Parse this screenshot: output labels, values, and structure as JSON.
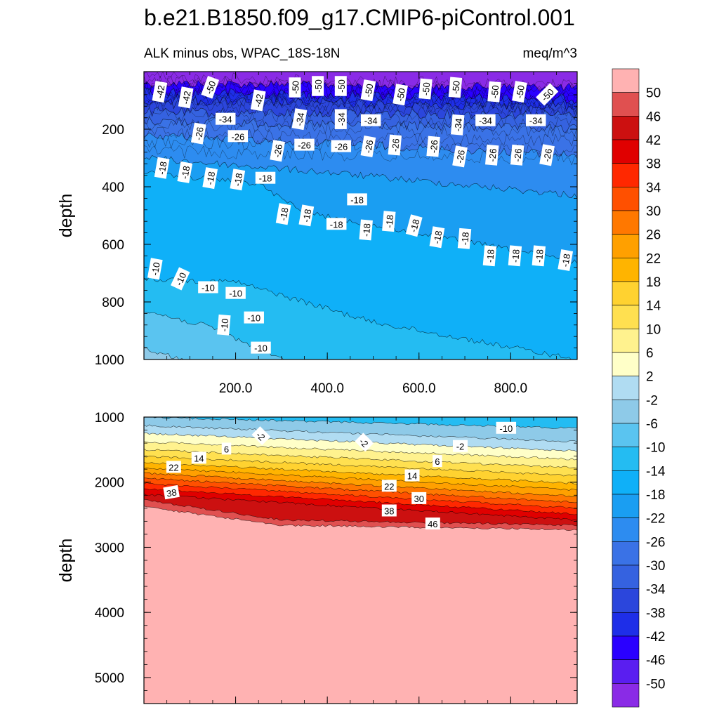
{
  "title": "b.e21.B1850.f09_g17.CMIP6-piControl.001",
  "subtitle_left": "ALK minus obs, WPAC_18S-18N",
  "subtitle_right": "meq/m^3",
  "colors": {
    "levels": [
      -50,
      -46,
      -42,
      -38,
      -34,
      -30,
      -26,
      -22,
      -18,
      -14,
      -10,
      -6,
      -2,
      2,
      6,
      10,
      14,
      18,
      22,
      26,
      30,
      34,
      38,
      42,
      46,
      50
    ],
    "swatches": [
      "#8a2be6",
      "#5a1ef0",
      "#2a00ff",
      "#1e2ee8",
      "#2b46dc",
      "#3562e0",
      "#3a72e6",
      "#2d8cf0",
      "#1a9ef2",
      "#0fb0f8",
      "#24bcf2",
      "#5ac4f0",
      "#8ecae8",
      "#b0dcf2",
      "#ffffc8",
      "#fff28e",
      "#ffe050",
      "#ffd230",
      "#ffb400",
      "#ffa000",
      "#ff7800",
      "#ff5000",
      "#ff2800",
      "#e00000",
      "#cc1010",
      "#e05050",
      "#ffb2b2"
    ]
  },
  "chart_data": [
    {
      "type": "contour",
      "panel": "upper",
      "xlabel": "",
      "ylabel": "depth",
      "xlim": [
        0,
        945
      ],
      "ylim": [
        1000,
        0
      ],
      "xticks": [
        "200.0",
        "400.0",
        "600.0",
        "800.0"
      ],
      "yticks": [
        "200",
        "400",
        "600",
        "800",
        "1000"
      ],
      "contour_labels": [
        {
          "v": "-42",
          "x": 35,
          "y": 70,
          "r": -80
        },
        {
          "v": "-42",
          "x": 92,
          "y": 90,
          "r": -80
        },
        {
          "v": "-50",
          "x": 145,
          "y": 55,
          "r": -70
        },
        {
          "v": "-42",
          "x": 250,
          "y": 100,
          "r": -80
        },
        {
          "v": "-50",
          "x": 330,
          "y": 55,
          "r": -90
        },
        {
          "v": "-50",
          "x": 380,
          "y": 50,
          "r": -90
        },
        {
          "v": "-50",
          "x": 430,
          "y": 50,
          "r": -90
        },
        {
          "v": "-50",
          "x": 490,
          "y": 65,
          "r": -80
        },
        {
          "v": "-50",
          "x": 560,
          "y": 80,
          "r": -80
        },
        {
          "v": "-50",
          "x": 615,
          "y": 60,
          "r": -85
        },
        {
          "v": "-50",
          "x": 680,
          "y": 55,
          "r": -85
        },
        {
          "v": "-50",
          "x": 765,
          "y": 70,
          "r": -85
        },
        {
          "v": "-50",
          "x": 820,
          "y": 70,
          "r": -80
        },
        {
          "v": "-50",
          "x": 880,
          "y": 80,
          "r": -45
        },
        {
          "v": "-34",
          "x": 178,
          "y": 165,
          "r": 0
        },
        {
          "v": "-34",
          "x": 340,
          "y": 165,
          "r": -80
        },
        {
          "v": "-34",
          "x": 430,
          "y": 165,
          "r": -90
        },
        {
          "v": "-34",
          "x": 495,
          "y": 170,
          "r": 0
        },
        {
          "v": "-34",
          "x": 685,
          "y": 185,
          "r": -85
        },
        {
          "v": "-34",
          "x": 745,
          "y": 170,
          "r": 0
        },
        {
          "v": "-34",
          "x": 855,
          "y": 170,
          "r": 0
        },
        {
          "v": "-26",
          "x": 120,
          "y": 215,
          "r": -80
        },
        {
          "v": "-26",
          "x": 205,
          "y": 225,
          "r": 0
        },
        {
          "v": "-26",
          "x": 292,
          "y": 275,
          "r": -80
        },
        {
          "v": "-26",
          "x": 350,
          "y": 255,
          "r": 0
        },
        {
          "v": "-26",
          "x": 430,
          "y": 260,
          "r": 0
        },
        {
          "v": "-26",
          "x": 490,
          "y": 260,
          "r": -80
        },
        {
          "v": "-26",
          "x": 548,
          "y": 255,
          "r": -85
        },
        {
          "v": "-26",
          "x": 632,
          "y": 260,
          "r": -85
        },
        {
          "v": "-26",
          "x": 690,
          "y": 295,
          "r": -80
        },
        {
          "v": "-26",
          "x": 760,
          "y": 290,
          "r": -85
        },
        {
          "v": "-26",
          "x": 815,
          "y": 290,
          "r": -85
        },
        {
          "v": "-26",
          "x": 880,
          "y": 290,
          "r": -80
        },
        {
          "v": "-18",
          "x": 40,
          "y": 335,
          "r": -80
        },
        {
          "v": "-18",
          "x": 90,
          "y": 350,
          "r": -80
        },
        {
          "v": "-18",
          "x": 145,
          "y": 370,
          "r": -80
        },
        {
          "v": "-18",
          "x": 205,
          "y": 375,
          "r": -80
        },
        {
          "v": "-18",
          "x": 265,
          "y": 370,
          "r": 0
        },
        {
          "v": "-18",
          "x": 305,
          "y": 495,
          "r": -80
        },
        {
          "v": "-18",
          "x": 355,
          "y": 500,
          "r": -80
        },
        {
          "v": "-18",
          "x": 420,
          "y": 530,
          "r": 0
        },
        {
          "v": "-18",
          "x": 465,
          "y": 445,
          "r": 0
        },
        {
          "v": "-18",
          "x": 485,
          "y": 550,
          "r": -85
        },
        {
          "v": "-18",
          "x": 535,
          "y": 520,
          "r": -85
        },
        {
          "v": "-18",
          "x": 590,
          "y": 535,
          "r": -75
        },
        {
          "v": "-18",
          "x": 640,
          "y": 575,
          "r": -80
        },
        {
          "v": "-18",
          "x": 700,
          "y": 580,
          "r": -85
        },
        {
          "v": "-18",
          "x": 755,
          "y": 640,
          "r": -85
        },
        {
          "v": "-18",
          "x": 810,
          "y": 640,
          "r": -85
        },
        {
          "v": "-18",
          "x": 862,
          "y": 640,
          "r": -85
        },
        {
          "v": "-18",
          "x": 920,
          "y": 655,
          "r": -80
        },
        {
          "v": "-10",
          "x": 25,
          "y": 685,
          "r": -80
        },
        {
          "v": "-10",
          "x": 80,
          "y": 720,
          "r": -65
        },
        {
          "v": "-10",
          "x": 140,
          "y": 750,
          "r": 0
        },
        {
          "v": "-10",
          "x": 200,
          "y": 770,
          "r": 0
        },
        {
          "v": "-10",
          "x": 175,
          "y": 880,
          "r": -85
        },
        {
          "v": "-10",
          "x": 240,
          "y": 855,
          "r": 0
        },
        {
          "v": "-10",
          "x": 255,
          "y": 960,
          "r": 0
        }
      ]
    },
    {
      "type": "contour",
      "panel": "lower",
      "xlabel": "",
      "ylabel": "depth",
      "xlim": [
        0,
        945
      ],
      "ylim": [
        5400,
        1000
      ],
      "yticks": [
        "1000",
        "2000",
        "3000",
        "4000",
        "5000"
      ],
      "contour_labels": [
        {
          "v": "-10",
          "x": 790,
          "y": 1170,
          "r": 0
        },
        {
          "v": "-2",
          "x": 255,
          "y": 1290,
          "r": 45
        },
        {
          "v": "-2",
          "x": 480,
          "y": 1390,
          "r": 45
        },
        {
          "v": "-2",
          "x": 690,
          "y": 1450,
          "r": 0
        },
        {
          "v": "6",
          "x": 180,
          "y": 1490,
          "r": 0
        },
        {
          "v": "6",
          "x": 640,
          "y": 1680,
          "r": 0
        },
        {
          "v": "14",
          "x": 120,
          "y": 1630,
          "r": 0
        },
        {
          "v": "14",
          "x": 585,
          "y": 1900,
          "r": 0
        },
        {
          "v": "22",
          "x": 65,
          "y": 1770,
          "r": 0
        },
        {
          "v": "22",
          "x": 535,
          "y": 2060,
          "r": 0
        },
        {
          "v": "30",
          "x": 600,
          "y": 2250,
          "r": 0
        },
        {
          "v": "38",
          "x": 60,
          "y": 2160,
          "r": -10
        },
        {
          "v": "38",
          "x": 535,
          "y": 2440,
          "r": 0
        },
        {
          "v": "46",
          "x": 630,
          "y": 2640,
          "r": 0
        }
      ]
    }
  ]
}
